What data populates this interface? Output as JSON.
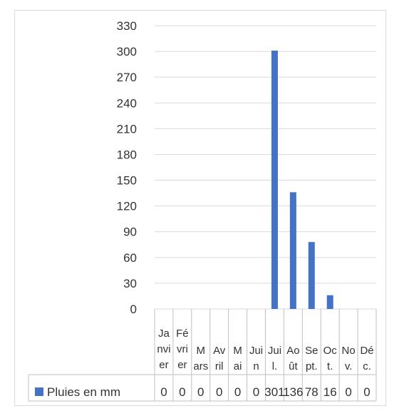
{
  "chart_data": {
    "type": "bar",
    "categories": [
      "Janvier",
      "Février",
      "Mars",
      "Avril",
      "Mai",
      "Juin",
      "Juil.",
      "Août",
      "Sept.",
      "Oct.",
      "Nov.",
      "Déc."
    ],
    "category_lines": [
      [
        "Ja",
        "nvi",
        "er"
      ],
      [
        "Fé",
        "vri",
        "er"
      ],
      [
        "M",
        "ars"
      ],
      [
        "Av",
        "ril"
      ],
      [
        "M",
        "ai"
      ],
      [
        "Jui",
        "n"
      ],
      [
        "Jui",
        "l."
      ],
      [
        "Ao",
        "ût"
      ],
      [
        "Se",
        "pt."
      ],
      [
        "Oc",
        "t."
      ],
      [
        "No",
        "v."
      ],
      [
        "Dé",
        "c."
      ]
    ],
    "series": [
      {
        "name": "Pluies en mm",
        "values": [
          0,
          0,
          0,
          0,
          0,
          0,
          301,
          136,
          78,
          16,
          0,
          0
        ],
        "color": "#4472c4"
      }
    ],
    "value_labels": [
      "0",
      "0",
      "0",
      "0",
      "0",
      "0",
      "301",
      "136",
      "78",
      "16",
      "0",
      "0"
    ],
    "ylim": [
      0,
      330
    ],
    "yticks": [
      0,
      30,
      60,
      90,
      120,
      150,
      180,
      210,
      240,
      270,
      300,
      330
    ],
    "gridlines": true,
    "data_table": true,
    "legend_position": "bottom-left (data table)"
  }
}
